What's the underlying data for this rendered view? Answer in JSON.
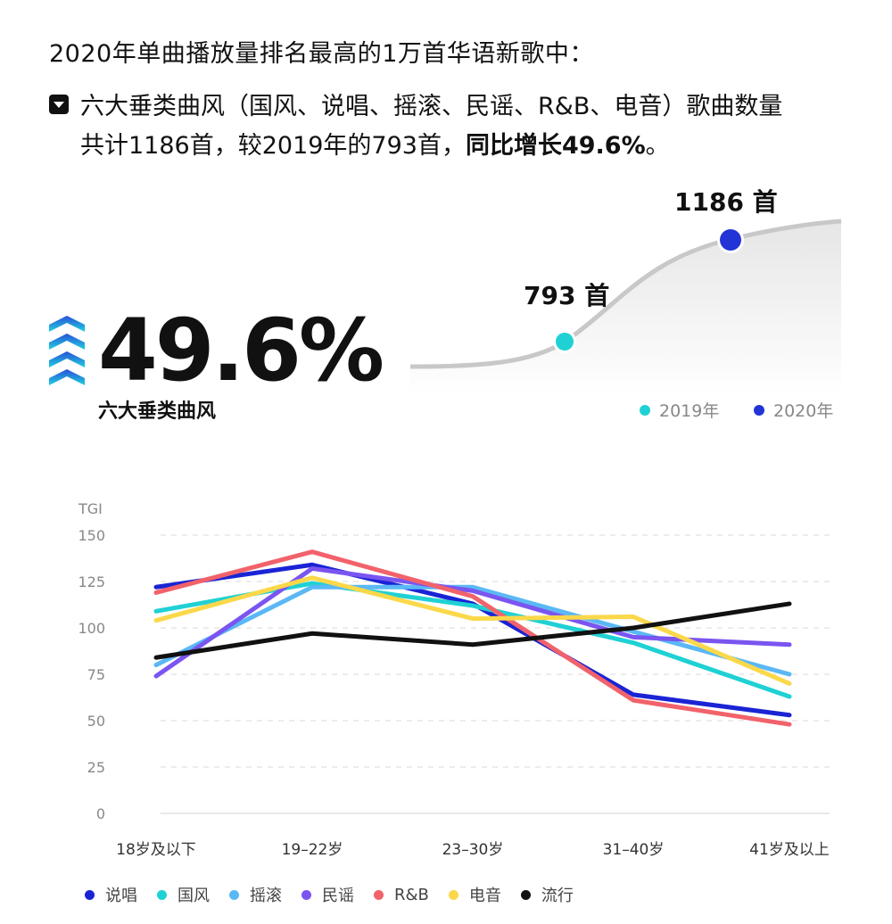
{
  "heading": "2020年单曲播放量排名最高的1万首华语新歌中：",
  "bullet": {
    "line1": "六大垂类曲风（国风、说唱、摇滚、民谣、R&B、电音）歌曲数量",
    "line2_normal": "共计1186首，较2019年的793首，",
    "line2_bold": "同比增长49.6%",
    "line2_end": "。"
  },
  "summary": {
    "pct": "49.6%",
    "label": "六大垂类曲风",
    "value_2019": "793 首",
    "value_2020": "1186 首",
    "legend_2019": "2019年",
    "legend_2020": "2020年",
    "color_2019": "#1fd1d4",
    "color_2020": "#2234d6"
  },
  "chart_data": {
    "type": "line",
    "ylabel": "TGI",
    "ylim": [
      0,
      150
    ],
    "yticks": [
      0,
      25,
      50,
      75,
      100,
      125,
      150
    ],
    "categories": [
      "18岁及以下",
      "19–22岁",
      "23–30岁",
      "31–40岁",
      "41岁及以上"
    ],
    "series": [
      {
        "name": "说唱",
        "color": "#1a24d4",
        "values": [
          122,
          134,
          113,
          64,
          53
        ]
      },
      {
        "name": "国风",
        "color": "#1fd1d4",
        "values": [
          109,
          124,
          112,
          92,
          63
        ]
      },
      {
        "name": "摇滚",
        "color": "#5ab8f5",
        "values": [
          80,
          122,
          122,
          98,
          75
        ]
      },
      {
        "name": "民谣",
        "color": "#7a55f0",
        "values": [
          74,
          132,
          120,
          95,
          91
        ]
      },
      {
        "name": "R&B",
        "color": "#f2626a",
        "values": [
          119,
          141,
          117,
          61,
          48
        ]
      },
      {
        "name": "电音",
        "color": "#fbd84a",
        "values": [
          104,
          127,
          105,
          106,
          70
        ]
      },
      {
        "name": "流行",
        "color": "#111111",
        "values": [
          84,
          97,
          91,
          100,
          113
        ]
      }
    ]
  }
}
